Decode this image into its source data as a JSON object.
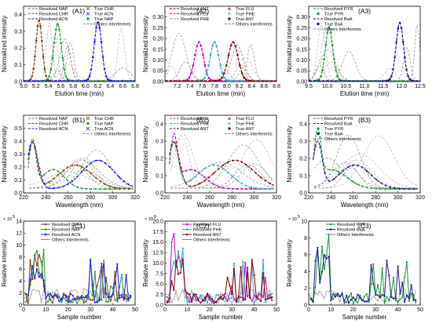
{
  "chart_data": [
    {
      "type": "line",
      "panel_label": "(A1)",
      "xlabel": "Elution time (min)",
      "ylabel": "Normalized intensity",
      "xlim": [
        5.0,
        6.8
      ],
      "ylim": [
        0,
        0.45
      ],
      "xticks": [
        "5.0",
        "5.2",
        "5.4",
        "5.6",
        "5.8",
        "6.0",
        "6.2",
        "6.4",
        "6.6",
        "6.8"
      ],
      "yticks": [
        "0.0",
        "0.1",
        "0.2",
        "0.3",
        "0.4"
      ],
      "legend": [
        {
          "label": "Resolved NAP",
          "color": "#1f9e2f",
          "style": "dash"
        },
        {
          "label": "Resolved CHR",
          "color": "#b5651d",
          "style": "dash"
        },
        {
          "label": "Resolved ACN",
          "color": "#1a1aff",
          "style": "dash"
        },
        {
          "label": "True CHR",
          "color": "#8b3a0f",
          "style": "x"
        },
        {
          "label": "True ACN",
          "color": "#1a1aff",
          "style": "x"
        },
        {
          "label": "True NAP",
          "color": "#1f9e2f",
          "style": "circle"
        },
        {
          "label": "Others Interferents",
          "color": "#888888",
          "style": "dash"
        }
      ],
      "series": [
        {
          "name": "CHR",
          "peak": 5.25,
          "height": 0.36,
          "width": 0.05,
          "color": "#8b3a0f"
        },
        {
          "name": "NAP",
          "peak": 5.55,
          "height": 0.34,
          "width": 0.06,
          "color": "#1f9e2f"
        },
        {
          "name": "ACN",
          "peak": 6.2,
          "height": 0.35,
          "width": 0.06,
          "color": "#1a1aff"
        }
      ]
    },
    {
      "type": "line",
      "panel_label": "(A2)",
      "xlabel": "Elution time (min)",
      "ylabel": "Normalized intensity",
      "xlim": [
        7.0,
        8.8
      ],
      "ylim": [
        0,
        0.35
      ],
      "xticks": [
        "7.2",
        "7.4",
        "7.6",
        "7.8",
        "8.0",
        "8.2",
        "8.4",
        "8.6",
        "8.8"
      ],
      "yticks": [
        "0.00",
        "0.05",
        "0.10",
        "0.15",
        "0.20",
        "0.25",
        "0.30"
      ],
      "legend": [
        {
          "label": "Resolved ANT",
          "color": "#8b0000",
          "style": "dash"
        },
        {
          "label": "Resolved FLU",
          "color": "#cc00cc",
          "style": "dash"
        },
        {
          "label": "Resolved PHE",
          "color": "#33aacc",
          "style": "dash"
        },
        {
          "label": "True FLU",
          "color": "#cc00cc",
          "style": "triangle"
        },
        {
          "label": "True PHE",
          "color": "#66ccdd",
          "style": "diamond"
        },
        {
          "label": "True ANT",
          "color": "#8b0000",
          "style": "circle"
        },
        {
          "label": "Others Interferents",
          "color": "#888888",
          "style": "dash"
        }
      ],
      "series": [
        {
          "name": "FLU",
          "peak": 7.55,
          "height": 0.18,
          "width": 0.07,
          "color": "#cc00cc"
        },
        {
          "name": "PHE",
          "peak": 7.8,
          "height": 0.18,
          "width": 0.07,
          "color": "#33aacc"
        },
        {
          "name": "ANT",
          "peak": 8.1,
          "height": 0.18,
          "width": 0.08,
          "color": "#8b0000"
        }
      ]
    },
    {
      "type": "line",
      "panel_label": "(A3)",
      "xlabel": "Elution time (min)",
      "ylabel": "Normalized intensity",
      "xlim": [
        9.5,
        12.5
      ],
      "ylim": [
        0,
        0.35
      ],
      "xticks": [
        "9.5",
        "10.0",
        "10.5",
        "11.0",
        "11.5",
        "12.0",
        "12.5"
      ],
      "yticks": [
        "0.00",
        "0.05",
        "0.10",
        "0.15",
        "0.20",
        "0.25",
        "0.30"
      ],
      "legend": [
        {
          "label": "Resolved PYR",
          "color": "#1f9e2f",
          "style": "dash"
        },
        {
          "label": "True PYR",
          "color": "#1f9e2f",
          "style": "circle"
        },
        {
          "label": "Resolved BaA",
          "color": "#1a1a8c",
          "style": "dash"
        },
        {
          "label": "True BaA",
          "color": "#1a1a8c",
          "style": "circle"
        },
        {
          "label": "Others Interferents",
          "color": "#888888",
          "style": "dash"
        }
      ],
      "series": [
        {
          "name": "PYR",
          "peak": 10.05,
          "height": 0.25,
          "width": 0.1,
          "color": "#1f9e2f"
        },
        {
          "name": "BaA",
          "peak": 11.95,
          "height": 0.27,
          "width": 0.1,
          "color": "#1a1a8c"
        }
      ]
    },
    {
      "type": "line",
      "panel_label": "(B1)",
      "xlabel": "Wavelength (nm)",
      "ylabel": "Normalized intensity",
      "xlim": [
        220,
        320
      ],
      "ylim": [
        0,
        0.6
      ],
      "xticks": [
        "220",
        "240",
        "260",
        "280",
        "300",
        "320"
      ],
      "yticks": [
        "0.0",
        "0.1",
        "0.2",
        "0.3",
        "0.4",
        "0.5"
      ],
      "legend": [
        {
          "label": "Resolved NAP",
          "color": "#1f9e2f",
          "style": "dash"
        },
        {
          "label": "Resolved CHR",
          "color": "#8b3a0f",
          "style": "dash"
        },
        {
          "label": "Resolved ACN",
          "color": "#1a1aff",
          "style": "dash"
        },
        {
          "label": "True CHR",
          "color": "#8b3a0f",
          "style": "x"
        },
        {
          "label": "True NAP",
          "color": "#1f9e2f",
          "style": "circle"
        },
        {
          "label": "True ACN",
          "color": "#1a1aff",
          "style": "x"
        },
        {
          "label": "Others Interferents",
          "color": "#888888",
          "style": "dash"
        }
      ]
    },
    {
      "type": "line",
      "panel_label": "(B2)",
      "xlabel": "Wavelength (nm)",
      "ylabel": "Normalized intensity",
      "xlim": [
        220,
        320
      ],
      "ylim": [
        0,
        0.45
      ],
      "xticks": [
        "220",
        "240",
        "260",
        "280",
        "300",
        "320"
      ],
      "yticks": [
        "0.0",
        "0.1",
        "0.2",
        "0.3",
        "0.4"
      ],
      "legend": [
        {
          "label": "Resolved FLU",
          "color": "#cc00cc",
          "style": "dash"
        },
        {
          "label": "Resolved PHE",
          "color": "#33aacc",
          "style": "dash"
        },
        {
          "label": "Resolved ANT",
          "color": "#8b0000",
          "style": "dash"
        },
        {
          "label": "True FLU",
          "color": "#cc00cc",
          "style": "triangle"
        },
        {
          "label": "True PHE",
          "color": "#66ccdd",
          "style": "diamond"
        },
        {
          "label": "True ANT",
          "color": "#8b0000",
          "style": "circle"
        },
        {
          "label": "Others Interferents",
          "color": "#888888",
          "style": "dash"
        }
      ]
    },
    {
      "type": "line",
      "panel_label": "(B3)",
      "xlabel": "Wavelength (nm)",
      "ylabel": "Normalized intensity",
      "xlim": [
        220,
        320
      ],
      "ylim": [
        0,
        0.45
      ],
      "xticks": [
        "220",
        "240",
        "260",
        "280",
        "300",
        "320"
      ],
      "yticks": [
        "0.0",
        "0.1",
        "0.2",
        "0.3",
        "0.4"
      ],
      "legend": [
        {
          "label": "Resolved PYR",
          "color": "#1f9e2f",
          "style": "dash"
        },
        {
          "label": "Resolved BaA",
          "color": "#1a1a8c",
          "style": "dash"
        },
        {
          "label": "True PYR",
          "color": "#1f9e2f",
          "style": "circle"
        },
        {
          "label": "True BaA",
          "color": "#1a1a8c",
          "style": "circle"
        },
        {
          "label": "Others Interferents",
          "color": "#888888",
          "style": "dash"
        }
      ]
    },
    {
      "type": "line",
      "panel_label": "(C1)",
      "xlabel": "Sample number",
      "ylabel": "Relative intensity",
      "sci_note": "× 10",
      "sci_exp": "5",
      "xlim": [
        0,
        50
      ],
      "ylim": [
        0,
        14
      ],
      "xticks": [
        "0",
        "10",
        "20",
        "30",
        "40",
        "50"
      ],
      "yticks": [
        "0",
        "2",
        "4",
        "6",
        "8",
        "10",
        "12",
        "14"
      ],
      "legend": [
        {
          "label": "Resolved CHR",
          "color": "#8b3a0f",
          "style": "line-marker"
        },
        {
          "label": "Resolved NAP",
          "color": "#1f9e2f",
          "style": "line-marker"
        },
        {
          "label": "Resolved ACN",
          "color": "#1a1aff",
          "style": "line-marker"
        },
        {
          "label": "Others Interferents",
          "color": "#888888",
          "style": "line"
        }
      ]
    },
    {
      "type": "line",
      "panel_label": "(C2)",
      "xlabel": "Sample number",
      "ylabel": "Relative intensity",
      "sci_note": "× 10",
      "sci_exp": "5",
      "xlim": [
        0,
        50
      ],
      "ylim": [
        0,
        20
      ],
      "xticks": [
        "0",
        "10",
        "20",
        "30",
        "40",
        "50"
      ],
      "yticks": [
        "0.0",
        "2.5",
        "5.0",
        "7.5",
        "10.0",
        "12.5",
        "15.0",
        "17.5",
        "20.0"
      ],
      "legend": [
        {
          "label": "Resolved FLU",
          "color": "#cc00cc",
          "style": "line-marker"
        },
        {
          "label": "Resolved PHE",
          "color": "#33aacc",
          "style": "line-marker"
        },
        {
          "label": "Resolved ANT",
          "color": "#8b0000",
          "style": "line-marker"
        },
        {
          "label": "Others Interferents",
          "color": "#888888",
          "style": "line"
        }
      ]
    },
    {
      "type": "line",
      "panel_label": "(C3)",
      "xlabel": "Sample number",
      "ylabel": "Relative intensity",
      "sci_note": "× 10",
      "sci_exp": "5",
      "xlim": [
        0,
        50
      ],
      "ylim": [
        0,
        10
      ],
      "xticks": [
        "0",
        "10",
        "20",
        "30",
        "40",
        "50"
      ],
      "yticks": [
        "0",
        "2",
        "4",
        "6",
        "8",
        "10"
      ],
      "legend": [
        {
          "label": "Resolved PYR",
          "color": "#1f9e2f",
          "style": "line-marker"
        },
        {
          "label": "Resolved BaA",
          "color": "#1a1a8c",
          "style": "line-marker"
        },
        {
          "label": "Others Interferents",
          "color": "#888888",
          "style": "line"
        }
      ]
    }
  ]
}
